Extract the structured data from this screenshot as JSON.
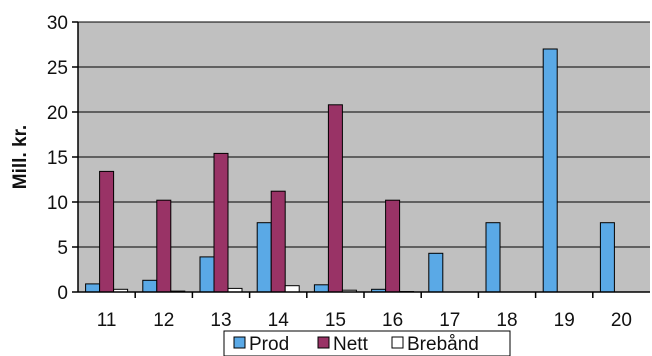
{
  "chart_data": {
    "type": "bar",
    "title": "",
    "xlabel": "",
    "ylabel": "Mill. kr.",
    "ylim": [
      0,
      30
    ],
    "yticks": [
      0,
      5,
      10,
      15,
      20,
      25,
      30
    ],
    "grid": true,
    "legend_position": "bottom",
    "categories": [
      "11",
      "12",
      "13",
      "14",
      "15",
      "16",
      "17",
      "18",
      "19",
      "20"
    ],
    "series": [
      {
        "name": "Prod",
        "color": "#5aa9e6",
        "values": [
          0.9,
          1.3,
          3.9,
          7.7,
          0.8,
          0.3,
          4.3,
          7.7,
          27.0,
          7.7
        ]
      },
      {
        "name": "Nett",
        "color": "#993366",
        "values": [
          13.4,
          10.2,
          15.4,
          11.2,
          20.8,
          10.2,
          0,
          0,
          0,
          0
        ]
      },
      {
        "name": "Brebånd",
        "color": "#ffffff",
        "values": [
          0.3,
          0.1,
          0.4,
          0.7,
          0.2,
          0.05,
          0,
          0,
          0,
          0
        ]
      }
    ]
  }
}
